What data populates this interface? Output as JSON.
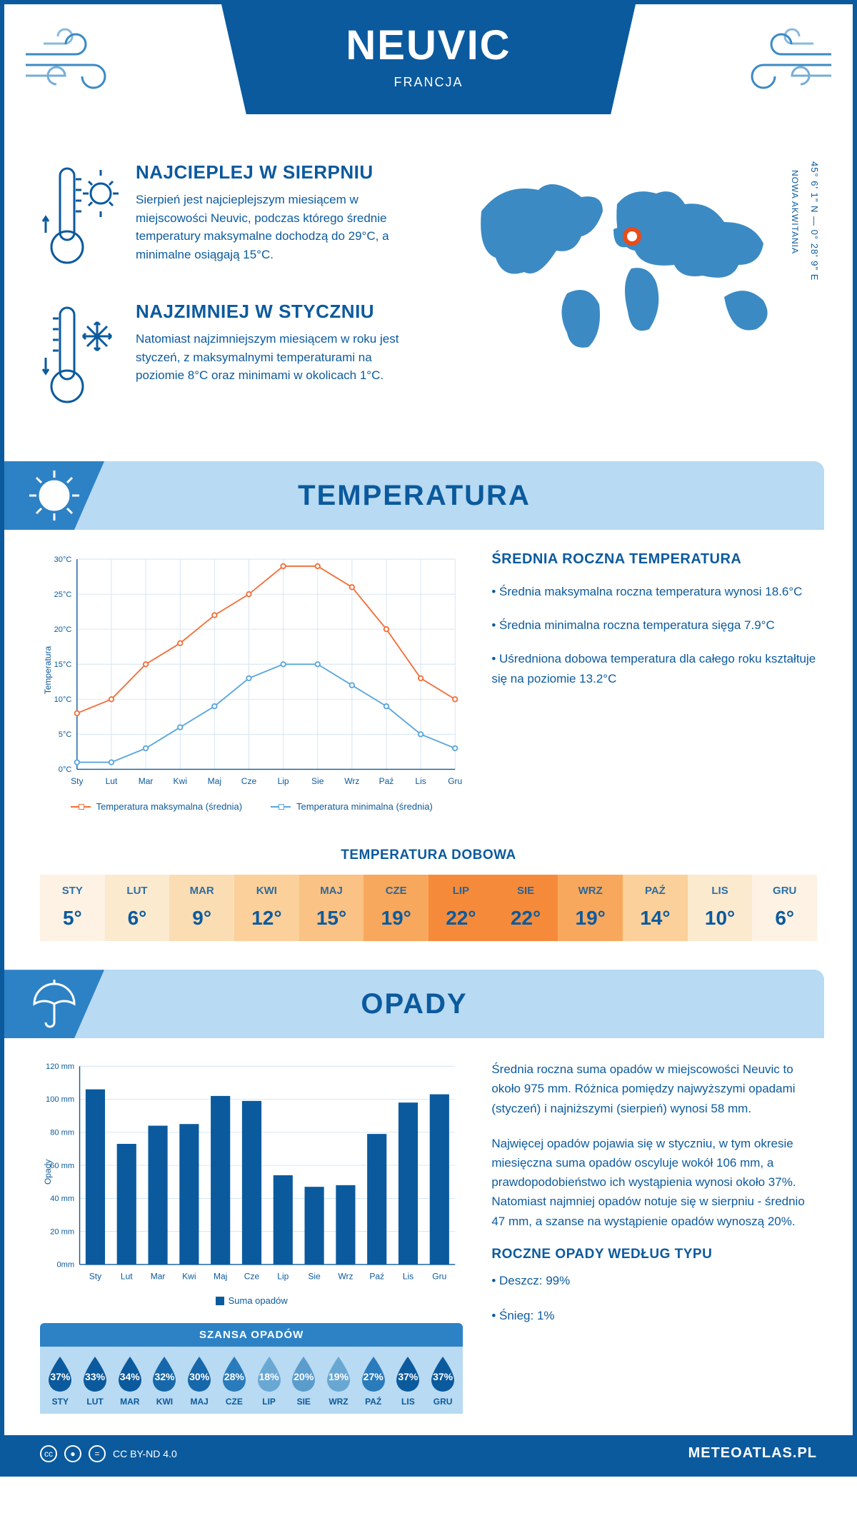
{
  "colors": {
    "brand": "#0b5a9e",
    "brand_light": "#2d82c6",
    "banner_bg": "#b8daf2",
    "line_max": "#f36f3a",
    "line_min": "#5aa6dc",
    "bar": "#0b5a9e",
    "grid": "#d3e4f2",
    "marker": "#e84c1a",
    "white": "#ffffff"
  },
  "header": {
    "city": "NEUVIC",
    "country": "FRANCJA"
  },
  "location": {
    "coords": "45° 6' 1\" N — 0° 28' 9\" E",
    "region": "NOWA AKWITANIA"
  },
  "facts": {
    "hot": {
      "title": "NAJCIEPLEJ W SIERPNIU",
      "text": "Sierpień jest najcieplejszym miesiącem w miejscowości Neuvic, podczas którego średnie temperatury maksymalne dochodzą do 29°C, a minimalne osiągają 15°C."
    },
    "cold": {
      "title": "NAJZIMNIEJ W STYCZNIU",
      "text": "Natomiast najzimniejszym miesiącem w roku jest styczeń, z maksymalnymi temperaturami na poziomie 8°C oraz minimami w okolicach 1°C."
    }
  },
  "sections": {
    "temperature": "TEMPERATURA",
    "precipitation": "OPADY"
  },
  "temperature_chart": {
    "type": "line",
    "ylabel": "Temperatura",
    "yticks": [
      "0°C",
      "5°C",
      "10°C",
      "15°C",
      "20°C",
      "25°C",
      "30°C"
    ],
    "ylim": [
      0,
      30
    ],
    "months": [
      "Sty",
      "Lut",
      "Mar",
      "Kwi",
      "Maj",
      "Cze",
      "Lip",
      "Sie",
      "Wrz",
      "Paź",
      "Lis",
      "Gru"
    ],
    "series_max": {
      "label": "Temperatura maksymalna (średnia)",
      "color": "#f36f3a",
      "values": [
        8,
        10,
        15,
        18,
        22,
        25,
        29,
        29,
        26,
        20,
        13,
        10
      ]
    },
    "series_min": {
      "label": "Temperatura minimalna (średnia)",
      "color": "#5aa6dc",
      "values": [
        1,
        1,
        3,
        6,
        9,
        13,
        15,
        15,
        12,
        9,
        5,
        3
      ]
    },
    "grid_color": "#d3e4f2",
    "axis_color": "#0b5a9e"
  },
  "avg_panel": {
    "title": "ŚREDNIA ROCZNA TEMPERATURA",
    "bullets": [
      "• Średnia maksymalna roczna temperatura wynosi 18.6°C",
      "• Średnia minimalna roczna temperatura sięga 7.9°C",
      "• Uśredniona dobowa temperatura dla całego roku kształtuje się na poziomie 13.2°C"
    ]
  },
  "daily": {
    "title": "TEMPERATURA DOBOWA",
    "months": [
      "STY",
      "LUT",
      "MAR",
      "KWI",
      "MAJ",
      "CZE",
      "LIP",
      "SIE",
      "WRZ",
      "PAŹ",
      "LIS",
      "GRU"
    ],
    "values": [
      "5°",
      "6°",
      "9°",
      "12°",
      "15°",
      "19°",
      "22°",
      "22°",
      "19°",
      "14°",
      "10°",
      "6°"
    ],
    "cell_colors": [
      "#fdf2e3",
      "#fceacf",
      "#fbddb4",
      "#fbd09a",
      "#fac284",
      "#f8a85d",
      "#f58b3a",
      "#f58b3a",
      "#f8a85d",
      "#fbd09a",
      "#fceacf",
      "#fdf2e3"
    ]
  },
  "precip_chart": {
    "type": "bar",
    "ylabel": "Opady",
    "yticks": [
      "0mm",
      "20 mm",
      "40 mm",
      "60 mm",
      "80 mm",
      "100 mm",
      "120 mm"
    ],
    "ylim": [
      0,
      120
    ],
    "months": [
      "Sty",
      "Lut",
      "Mar",
      "Kwi",
      "Maj",
      "Cze",
      "Lip",
      "Sie",
      "Wrz",
      "Paź",
      "Lis",
      "Gru"
    ],
    "values": [
      106,
      73,
      84,
      85,
      102,
      99,
      54,
      47,
      48,
      79,
      98,
      103
    ],
    "bar_color": "#0b5a9e",
    "legend": "Suma opadów",
    "grid_color": "#d3e4f2"
  },
  "precip_text": {
    "p1": "Średnia roczna suma opadów w miejscowości Neuvic to około 975 mm. Różnica pomiędzy najwyższymi opadami (styczeń) i najniższymi (sierpień) wynosi 58 mm.",
    "p2": "Najwięcej opadów pojawia się w styczniu, w tym okresie miesięczna suma opadów oscyluje wokół 106 mm, a prawdopodobieństwo ich wystąpienia wynosi około 37%. Natomiast najmniej opadów notuje się w sierpniu - średnio 47 mm, a szanse na wystąpienie opadów wynoszą 20%.",
    "type_title": "ROCZNE OPADY WEDŁUG TYPU",
    "types": [
      "• Deszcz: 99%",
      "• Śnieg: 1%"
    ]
  },
  "chance": {
    "title": "SZANSA OPADÓW",
    "months": [
      "STY",
      "LUT",
      "MAR",
      "KWI",
      "MAJ",
      "CZE",
      "LIP",
      "SIE",
      "WRZ",
      "PAŹ",
      "LIS",
      "GRU"
    ],
    "values": [
      "37%",
      "33%",
      "34%",
      "32%",
      "30%",
      "28%",
      "18%",
      "20%",
      "19%",
      "27%",
      "37%",
      "37%"
    ],
    "drop_colors": [
      "#0b5a9e",
      "#0b5a9e",
      "#0b5a9e",
      "#1668ab",
      "#1668ab",
      "#2a7bbc",
      "#6aa8d4",
      "#5a9ccc",
      "#69a7d3",
      "#2a7bbc",
      "#0b5a9e",
      "#0b5a9e"
    ]
  },
  "footer": {
    "license": "CC BY-ND 4.0",
    "brand": "METEOATLAS.PL"
  }
}
